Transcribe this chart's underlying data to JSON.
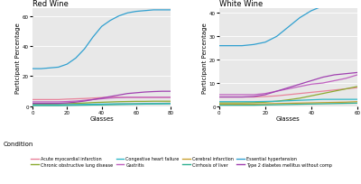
{
  "title_left": "Red Wine",
  "title_right": "White Wine",
  "xlabel": "Glasses",
  "ylabel": "Participant Percentage",
  "bg_color": "#e8e8e8",
  "fig_bg": "#ffffff",
  "colors": {
    "acute_myocardial": "#e8829a",
    "cerebral_infarction": "#c8a030",
    "copd": "#8caa30",
    "cirrhosis": "#30b090",
    "congestive": "#30b8c8",
    "essential_hypertension": "#30a0d0",
    "gastritis": "#c060c0",
    "t2dm": "#a040b0"
  },
  "red_x": [
    0,
    5,
    10,
    15,
    20,
    25,
    30,
    35,
    40,
    45,
    50,
    55,
    60,
    65,
    70,
    75,
    80
  ],
  "red_essential_hypertension": [
    25,
    25,
    25.5,
    26,
    28,
    32,
    38,
    46,
    53,
    57,
    60,
    62,
    63,
    63.5,
    64,
    64,
    64
  ],
  "red_acute_myocardial": [
    4.5,
    4.5,
    4.5,
    4.5,
    4.8,
    5.0,
    5.2,
    5.5,
    5.8,
    6.0,
    6.0,
    6.0,
    6.0,
    6.0,
    6.0,
    6.0,
    6.0
  ],
  "red_cerebral_infarction": [
    0.8,
    0.8,
    0.8,
    0.8,
    0.9,
    1.0,
    1.1,
    1.2,
    1.3,
    1.4,
    1.5,
    1.6,
    1.7,
    1.8,
    1.9,
    2.0,
    2.1
  ],
  "red_copd": [
    1.5,
    1.5,
    1.5,
    1.6,
    1.8,
    2.0,
    2.2,
    2.5,
    2.7,
    2.9,
    3.1,
    3.2,
    3.3,
    3.3,
    3.4,
    3.4,
    3.4
  ],
  "red_cirrhosis": [
    0.5,
    0.5,
    0.5,
    0.5,
    0.6,
    0.7,
    0.8,
    0.9,
    1.0,
    1.1,
    1.2,
    1.3,
    1.4,
    1.5,
    1.6,
    1.7,
    1.8
  ],
  "red_congestive": [
    1.0,
    1.0,
    1.0,
    1.0,
    1.1,
    1.2,
    1.3,
    1.4,
    1.5,
    1.6,
    1.7,
    1.7,
    1.7,
    1.8,
    1.8,
    1.8,
    1.8
  ],
  "red_gastritis": [
    3.0,
    3.0,
    3.0,
    3.0,
    3.2,
    3.5,
    4.0,
    4.5,
    5.0,
    5.5,
    5.8,
    6.0,
    6.0,
    6.0,
    6.0,
    6.0,
    6.0
  ],
  "red_t2dm": [
    2.0,
    2.0,
    2.0,
    2.0,
    2.3,
    2.8,
    3.5,
    4.5,
    5.5,
    6.5,
    7.5,
    8.5,
    9.0,
    9.5,
    9.8,
    10.0,
    10.0
  ],
  "red_ylim": [
    0,
    65
  ],
  "red_yticks": [
    0,
    20,
    40,
    60
  ],
  "red_xlim": [
    0,
    80
  ],
  "red_xticks": [
    0,
    20,
    40,
    60,
    80
  ],
  "white_x": [
    0,
    5,
    10,
    15,
    20,
    25,
    30,
    35,
    40,
    45,
    50,
    55,
    60
  ],
  "white_essential_hypertension": [
    26,
    26,
    26,
    26.5,
    27.5,
    30,
    34,
    38,
    41,
    43,
    44,
    44.5,
    45
  ],
  "white_acute_myocardial": [
    4.0,
    4.0,
    4.0,
    4.0,
    4.2,
    4.5,
    5.0,
    5.5,
    6.0,
    6.5,
    7.0,
    7.5,
    8.0
  ],
  "white_cerebral_infarction": [
    1.0,
    1.0,
    1.0,
    1.0,
    1.1,
    1.2,
    1.3,
    1.4,
    1.5,
    1.6,
    1.7,
    1.8,
    2.0
  ],
  "white_copd": [
    1.5,
    1.5,
    1.5,
    1.6,
    1.8,
    2.2,
    2.8,
    3.5,
    4.5,
    5.5,
    6.5,
    7.5,
    8.5
  ],
  "white_cirrhosis": [
    0.5,
    0.5,
    0.5,
    0.5,
    0.6,
    0.7,
    0.8,
    0.9,
    1.0,
    1.1,
    1.2,
    1.3,
    1.4
  ],
  "white_congestive": [
    2.0,
    2.0,
    2.0,
    2.0,
    2.1,
    2.2,
    2.4,
    2.6,
    2.8,
    3.0,
    3.0,
    3.0,
    3.0
  ],
  "white_gastritis": [
    5.0,
    5.0,
    5.0,
    5.0,
    5.5,
    6.5,
    7.5,
    8.5,
    9.5,
    10.0,
    11.0,
    12.0,
    13.5
  ],
  "white_t2dm": [
    4.0,
    4.0,
    4.0,
    4.2,
    5.0,
    6.5,
    8.0,
    9.5,
    11.0,
    12.5,
    13.5,
    14.0,
    14.5
  ],
  "white_ylim": [
    0,
    42
  ],
  "white_yticks": [
    0,
    10,
    20,
    30,
    40
  ],
  "white_xlim": [
    0,
    60
  ],
  "white_xticks": [
    0,
    20,
    40,
    60
  ],
  "legend_labels": [
    "Acute myocardial infarction",
    "Cerebral infarction",
    "Chronic obstructive lung disease",
    "Cirrhosis of liver",
    "Congestive heart failure",
    "Essential hypertension",
    "Gastritis",
    "Type 2 diabetes mellitus without comp"
  ],
  "legend_colors_order": [
    "acute_myocardial",
    "cerebral_infarction",
    "copd",
    "cirrhosis",
    "congestive",
    "essential_hypertension",
    "gastritis",
    "t2dm"
  ]
}
